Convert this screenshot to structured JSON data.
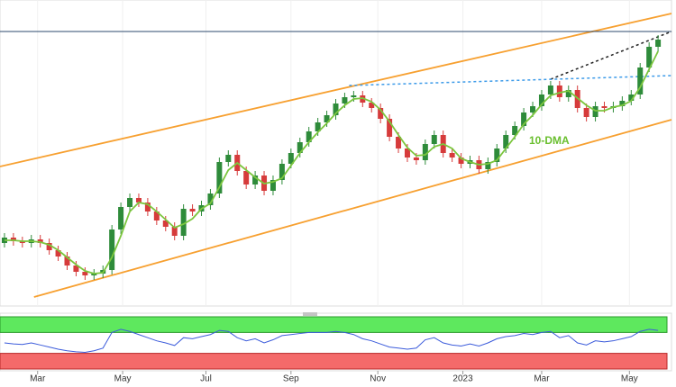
{
  "chart_data": {
    "type": "candlestick",
    "x": [
      5,
      15,
      25,
      35,
      45,
      55,
      65,
      75,
      85,
      95,
      105,
      115,
      125,
      135,
      145,
      155,
      165,
      175,
      185,
      195,
      205,
      215,
      225,
      235,
      245,
      255,
      265,
      275,
      285,
      295,
      305,
      315,
      325,
      335,
      345,
      355,
      365,
      375,
      385,
      395,
      405,
      415,
      425,
      435,
      445,
      455,
      465,
      475,
      485,
      495,
      505,
      515,
      525,
      535,
      545,
      555,
      565,
      575,
      585,
      595,
      605,
      615,
      625,
      635,
      645,
      655,
      665,
      675,
      685,
      695,
      705,
      715,
      725,
      735
    ],
    "open": [
      70,
      76,
      72,
      70,
      74,
      70,
      62,
      55,
      45,
      38,
      34,
      36,
      40,
      85,
      110,
      120,
      115,
      105,
      95,
      88,
      78,
      108,
      105,
      112,
      125,
      160,
      168,
      150,
      135,
      145,
      128,
      140,
      158,
      170,
      182,
      194,
      204,
      212,
      225,
      232,
      234,
      226,
      220,
      208,
      188,
      175,
      165,
      162,
      180,
      190,
      170,
      165,
      158,
      162,
      152,
      160,
      175,
      190,
      200,
      215,
      222,
      235,
      245,
      232,
      240,
      220,
      210,
      222,
      220,
      222,
      228,
      235,
      265,
      288
    ],
    "high": [
      81,
      81,
      77,
      79,
      79,
      75,
      67,
      60,
      50,
      43,
      41,
      45,
      90,
      115,
      125,
      125,
      120,
      110,
      100,
      93,
      113,
      113,
      117,
      130,
      165,
      173,
      173,
      155,
      150,
      150,
      145,
      163,
      175,
      187,
      199,
      209,
      217,
      230,
      237,
      239,
      239,
      231,
      225,
      213,
      193,
      180,
      170,
      185,
      195,
      195,
      175,
      170,
      167,
      167,
      165,
      180,
      195,
      205,
      220,
      227,
      240,
      250,
      250,
      245,
      245,
      225,
      227,
      227,
      227,
      233,
      240,
      270,
      293,
      301
    ],
    "low": [
      65,
      67,
      65,
      65,
      65,
      57,
      50,
      40,
      33,
      29,
      29,
      31,
      35,
      80,
      105,
      110,
      100,
      90,
      83,
      73,
      73,
      100,
      100,
      107,
      120,
      155,
      145,
      130,
      130,
      123,
      123,
      135,
      153,
      165,
      177,
      189,
      199,
      207,
      220,
      227,
      221,
      215,
      203,
      183,
      170,
      160,
      157,
      157,
      175,
      165,
      160,
      153,
      153,
      147,
      147,
      155,
      170,
      185,
      195,
      210,
      217,
      230,
      227,
      227,
      215,
      205,
      205,
      215,
      215,
      217,
      223,
      230,
      260,
      283
    ],
    "close": [
      76,
      72,
      70,
      74,
      70,
      62,
      55,
      45,
      38,
      34,
      36,
      40,
      85,
      110,
      120,
      115,
      105,
      95,
      88,
      78,
      108,
      105,
      112,
      125,
      160,
      168,
      150,
      135,
      145,
      128,
      140,
      158,
      170,
      182,
      194,
      204,
      212,
      225,
      232,
      234,
      226,
      220,
      208,
      188,
      175,
      165,
      162,
      180,
      190,
      170,
      165,
      158,
      162,
      152,
      160,
      175,
      190,
      200,
      215,
      222,
      235,
      245,
      232,
      240,
      220,
      210,
      222,
      220,
      222,
      228,
      235,
      265,
      288,
      296
    ],
    "up_color": "#2e8b3a",
    "down_color": "#d63b3b",
    "moving_average": {
      "color": "#7cc63e",
      "values": [
        73,
        73,
        72,
        72,
        71,
        68,
        62,
        54,
        46,
        39,
        36,
        37,
        54,
        78,
        105,
        115,
        113,
        105,
        96,
        87,
        91,
        97,
        108,
        114,
        132,
        151,
        159,
        151,
        143,
        136,
        138,
        142,
        156,
        170,
        182,
        193,
        203,
        214,
        223,
        230,
        231,
        227,
        218,
        205,
        190,
        176,
        167,
        168,
        177,
        180,
        175,
        164,
        160,
        157,
        158,
        162,
        175,
        188,
        202,
        212,
        224,
        234,
        237,
        239,
        231,
        223,
        217,
        217,
        221,
        223,
        228,
        243,
        263,
        283
      ]
    },
    "annotation": "10-DMA",
    "trend_lines": [
      {
        "x": [
          0,
          750
        ],
        "values": [
          155,
          325
        ],
        "color": "#f7a030",
        "dash": false
      },
      {
        "x": [
          38,
          750
        ],
        "values": [
          10,
          207
        ],
        "color": "#f7a030",
        "dash": false
      },
      {
        "x": [
          615,
          750
        ],
        "values": [
          252,
          305
        ],
        "color": "#222222",
        "dash": true
      },
      {
        "x": [
          390,
          750
        ],
        "values": [
          245,
          256
        ],
        "color": "#3d9be9",
        "dash": true
      },
      {
        "x": [
          0,
          750
        ],
        "values": [
          305,
          305
        ],
        "color": "#2c4a6e",
        "dash": false
      }
    ],
    "xlim": [
      0,
      750
    ],
    "ylim": [
      0,
      340
    ],
    "xticks": [
      {
        "value": 42,
        "label": "Mar"
      },
      {
        "value": 137,
        "label": "May"
      },
      {
        "value": 230,
        "label": "Jul"
      },
      {
        "value": 325,
        "label": "Sep"
      },
      {
        "value": 422,
        "label": "Nov"
      },
      {
        "value": 517,
        "label": "2023"
      },
      {
        "value": 605,
        "label": "Mar"
      },
      {
        "value": 703,
        "label": "May"
      }
    ],
    "grid": true,
    "rsi": {
      "color": "#3b5bdb",
      "ylim": [
        0,
        100
      ],
      "overbought": 70,
      "oversold": 30,
      "values": [
        50,
        48,
        47,
        50,
        46,
        42,
        38,
        35,
        33,
        32,
        35,
        40,
        70,
        76,
        72,
        66,
        60,
        54,
        50,
        45,
        60,
        58,
        62,
        66,
        74,
        72,
        60,
        54,
        58,
        50,
        56,
        64,
        66,
        68,
        70,
        70,
        70,
        72,
        70,
        66,
        58,
        54,
        48,
        42,
        40,
        38,
        40,
        56,
        60,
        50,
        46,
        44,
        48,
        44,
        50,
        58,
        62,
        64,
        68,
        66,
        70,
        72,
        60,
        64,
        50,
        46,
        54,
        52,
        54,
        58,
        62,
        72,
        76,
        74
      ]
    }
  }
}
